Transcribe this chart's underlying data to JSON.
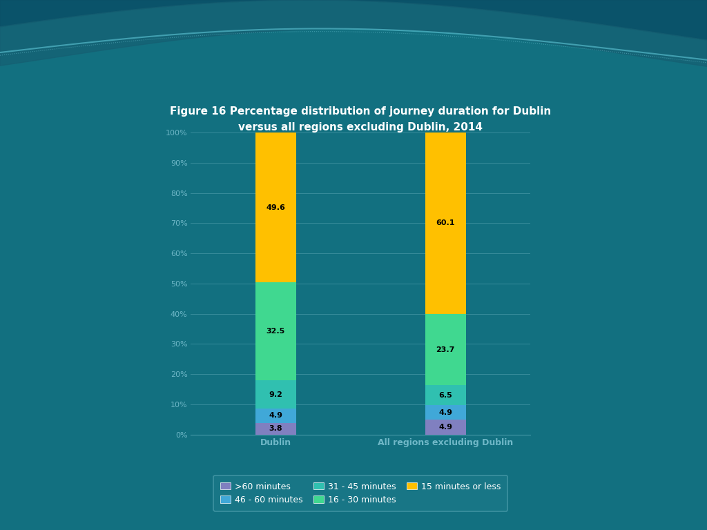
{
  "title_line1": "Figure 16 Percentage distribution of journey duration for Dublin",
  "title_line2": "versus all regions excluding Dublin, 2014",
  "categories": [
    "Dublin",
    "All regions excluding Dublin"
  ],
  "series": [
    {
      "label": ">60 minutes",
      "values": [
        3.8,
        4.9
      ],
      "color": "#8080c0"
    },
    {
      "label": "46 - 60 minutes",
      "values": [
        4.9,
        4.9
      ],
      "color": "#40a8d8"
    },
    {
      "label": "31 - 45 minutes",
      "values": [
        9.2,
        6.5
      ],
      "color": "#30c0b0"
    },
    {
      "label": "16 - 30 minutes",
      "values": [
        32.5,
        23.7
      ],
      "color": "#40d890"
    },
    {
      "label": "15 minutes or less",
      "values": [
        49.6,
        60.1
      ],
      "color": "#ffc000"
    }
  ],
  "bg_color": "#127080",
  "bg_dark": "#0a5060",
  "bg_mid": "#1a8090",
  "plot_bg": "#127080",
  "grid_color": "#4899a8",
  "tick_color": "#70b8c8",
  "title_color": "#ffffff",
  "label_color": "#ffffff",
  "legend_bg": "#1a7888",
  "legend_edge": "#4899a8",
  "legend_text": "#ffffff",
  "bar_width": 0.12,
  "ylim": [
    0,
    100
  ],
  "yticks": [
    0,
    10,
    20,
    30,
    40,
    50,
    60,
    70,
    80,
    90,
    100
  ],
  "ytick_labels": [
    "0%",
    "10%",
    "20%",
    "30%",
    "40%",
    "50%",
    "60%",
    "70%",
    "80%",
    "90%",
    "100%"
  ],
  "figsize": [
    10.24,
    7.68
  ],
  "dpi": 100
}
